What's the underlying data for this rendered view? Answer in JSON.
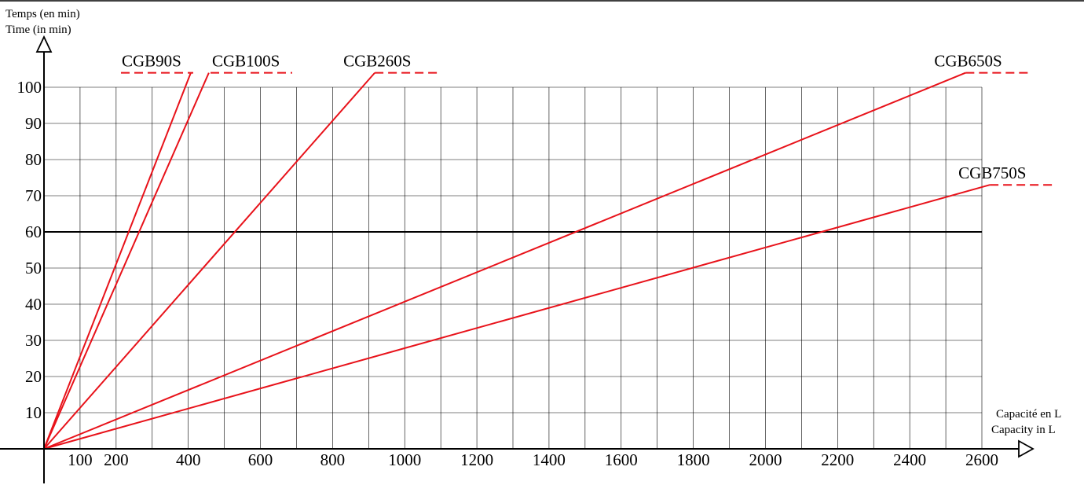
{
  "chart_data": {
    "type": "line",
    "y_title": [
      "Temps (en min)",
      "Time (in min)"
    ],
    "x_title": [
      "Capacité en L",
      "Capacity in L"
    ],
    "xlim": [
      0,
      2600
    ],
    "ylim": [
      0,
      100
    ],
    "grid": true,
    "x_ticks": [
      100,
      200,
      400,
      600,
      800,
      1000,
      1200,
      1400,
      1600,
      1800,
      2000,
      2200,
      2400,
      2600
    ],
    "y_ticks": [
      10,
      20,
      30,
      40,
      50,
      60,
      70,
      80,
      90,
      100
    ],
    "reference_line": {
      "y": 60,
      "color": "#000000"
    },
    "series_color": "#e8121a",
    "series": [
      {
        "name": "CGB90S",
        "x": [
          0,
          407
        ],
        "y": [
          0,
          104
        ]
      },
      {
        "name": "CGB100S",
        "x": [
          0,
          457
        ],
        "y": [
          0,
          104
        ]
      },
      {
        "name": "CGB260S",
        "x": [
          0,
          917
        ],
        "y": [
          0,
          104
        ]
      },
      {
        "name": "CGB650S",
        "x": [
          0,
          2555
        ],
        "y": [
          0,
          104
        ]
      },
      {
        "name": "CGB750S",
        "x": [
          0,
          2622
        ],
        "y": [
          0,
          73
        ]
      }
    ]
  }
}
